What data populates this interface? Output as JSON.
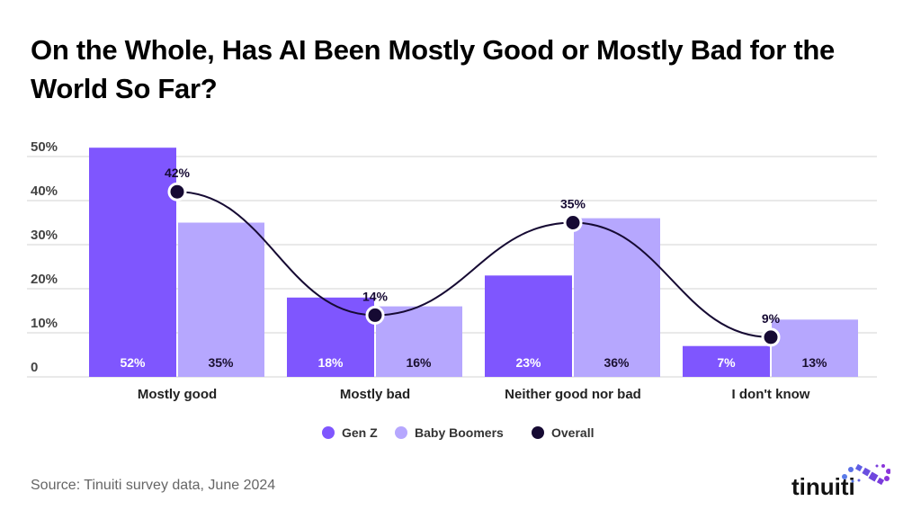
{
  "title": "On the Whole, Has AI Been Mostly Good or Mostly Bad for the World So Far?",
  "source": "Source: Tinuiti survey data, June 2024",
  "logo_text": "tinuiti",
  "colors": {
    "genz": "#7f56fe",
    "boomers": "#b6a7fe",
    "overall": "#160a33",
    "grid": "#e2e2e2"
  },
  "chart_data": {
    "type": "bar",
    "title": "On the Whole, Has AI Been Mostly Good or Mostly Bad for the World So Far?",
    "categories": [
      "Mostly good",
      "Mostly bad",
      "Neither good nor bad",
      "I don't know"
    ],
    "series": [
      {
        "name": "Gen Z",
        "type": "bar",
        "values": [
          52,
          18,
          23,
          7
        ]
      },
      {
        "name": "Baby Boomers",
        "type": "bar",
        "values": [
          35,
          16,
          36,
          13
        ]
      },
      {
        "name": "Overall",
        "type": "line",
        "values": [
          42,
          14,
          35,
          9
        ]
      }
    ],
    "yticks": [
      "0",
      "10%",
      "20%",
      "30%",
      "40%",
      "50%"
    ],
    "ylim": [
      0,
      50
    ],
    "grid": true,
    "legend": "bottom-center",
    "xlabel": "",
    "ylabel": ""
  }
}
